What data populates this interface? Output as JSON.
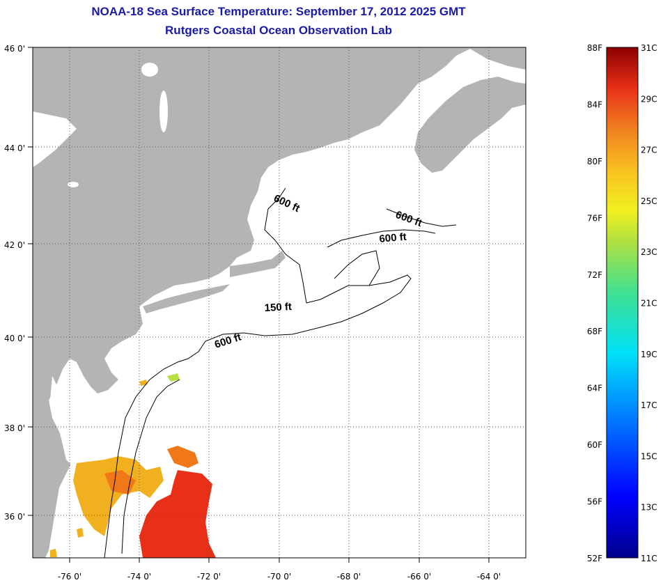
{
  "header": {
    "title": "NOAA-18 Sea Surface Temperature:  September 17, 2012 2025 GMT",
    "subtitle": "Rutgers Coastal Ocean Observation Lab"
  },
  "map": {
    "lon_labels": [
      "-76 0'",
      "-74 0'",
      "-72 0'",
      "-70 0'",
      "-68 0'",
      "-66 0'",
      "-64 0'"
    ],
    "lat_labels": [
      "46 0'",
      "44 0'",
      "42 0'",
      "40 0'",
      "38 0'",
      "36 0'"
    ],
    "depth_labels": [
      {
        "text": "600 ft",
        "lon": -69.2,
        "lat": 42.9
      },
      {
        "text": "600 ft",
        "lon": -66.5,
        "lat": 42.4
      },
      {
        "text": "600 ft",
        "lon": -67.3,
        "lat": 42.0
      },
      {
        "text": "150 ft",
        "lon": -69.7,
        "lat": 40.6
      },
      {
        "text": "600 ft",
        "lon": -71.5,
        "lat": 39.9
      }
    ],
    "colors": {
      "land": "#b4b4b4",
      "ocean": "#ffffff",
      "grid": "#555555",
      "sst_warm": "#f07818",
      "sst_hot": "#e83018",
      "sst_mild": "#f0b020",
      "sst_cool": "#b8e040"
    }
  },
  "colorbar": {
    "f_labels": [
      "88F",
      "84F",
      "80F",
      "76F",
      "72F",
      "68F",
      "64F",
      "60F",
      "56F",
      "52F"
    ],
    "c_labels": [
      "31C",
      "29C",
      "27C",
      "25C",
      "23C",
      "21C",
      "19C",
      "17C",
      "15C",
      "13C",
      "11C"
    ],
    "f_range": [
      52,
      88
    ],
    "c_range": [
      11,
      31
    ]
  }
}
